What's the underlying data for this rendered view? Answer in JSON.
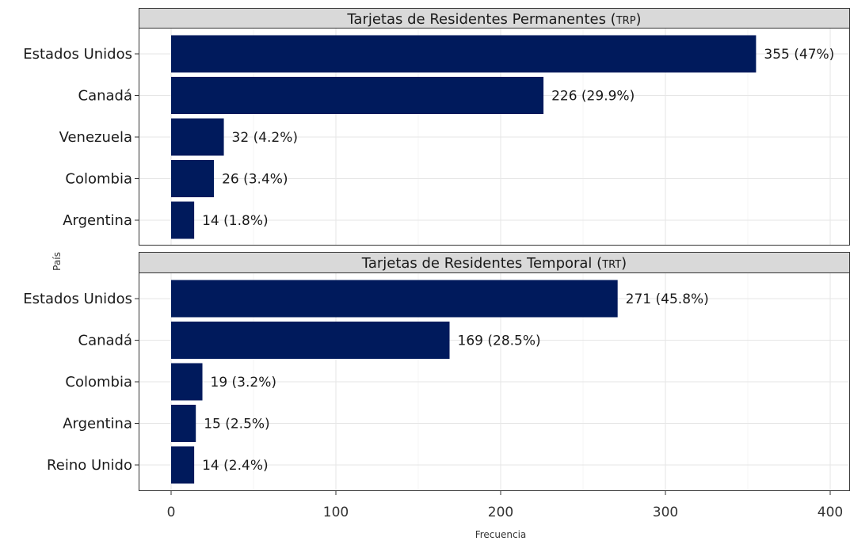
{
  "chart_data": {
    "type": "bar",
    "orientation": "horizontal",
    "xlabel": "Frecuencia",
    "ylabel": "País",
    "xlim": [
      0,
      400
    ],
    "xticks": [
      0,
      100,
      200,
      300,
      400
    ],
    "bar_color": "#001a5c",
    "grid": true,
    "panels": [
      {
        "title": "Tarjetas de Residentes Permanentes (TRP)",
        "categories": [
          "Estados Unidos",
          "Canadá",
          "Venezuela",
          "Colombia",
          "Argentina"
        ],
        "values": [
          355,
          226,
          32,
          26,
          14
        ],
        "labels": [
          "355 (47%)",
          "226 (29.9%)",
          "32 (4.2%)",
          "26 (3.4%)",
          "14 (1.8%)"
        ]
      },
      {
        "title": "Tarjetas de Residentes Temporal (TRT)",
        "categories": [
          "Estados Unidos",
          "Canadá",
          "Colombia",
          "Argentina",
          "Reino Unido"
        ],
        "values": [
          271,
          169,
          19,
          15,
          14
        ],
        "labels": [
          "271 (45.8%)",
          "169 (28.5%)",
          "19 (3.2%)",
          "15 (2.5%)",
          "14 (2.4%)"
        ]
      }
    ]
  }
}
